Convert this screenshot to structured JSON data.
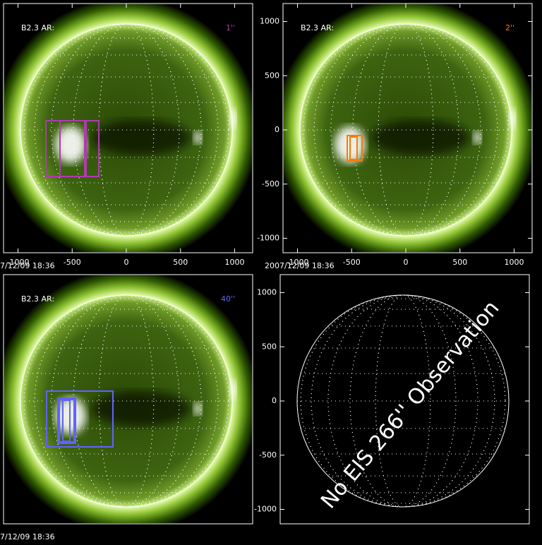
{
  "panels": [
    {
      "label": "B2.3 AR:",
      "slit": "1''",
      "slit_color": "#b03ab0",
      "date": "7/12/09 18:36",
      "xticks": [
        -1000,
        -500,
        0,
        500,
        1000
      ]
    },
    {
      "label": "B2.3 AR:",
      "slit": "2''",
      "slit_color": "#ff7a00",
      "date": "2007/12/09 18:36",
      "xticks": [
        -1000,
        -500,
        0,
        500,
        1000
      ],
      "yticks": [
        1000,
        500,
        0,
        -500,
        -1000
      ]
    },
    {
      "label": "B2.3 AR:",
      "slit": "40''",
      "slit_color": "#6262ff",
      "date": "7/12/09 18:36"
    },
    {
      "yticks": [
        1000,
        500,
        0,
        -500,
        -1000
      ],
      "annotation": "No EIS 266'' Observation"
    }
  ]
}
